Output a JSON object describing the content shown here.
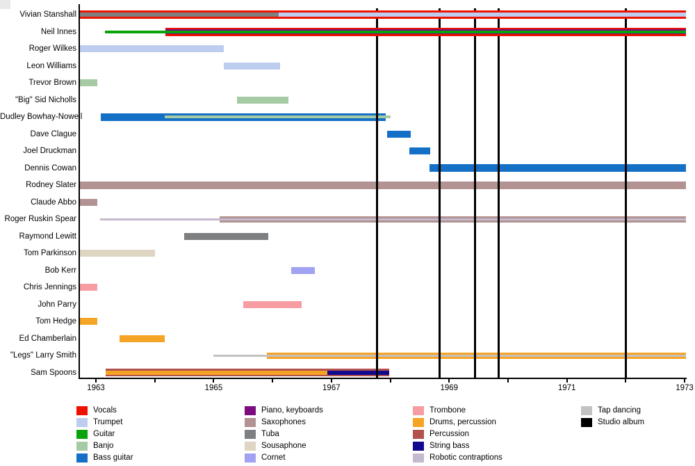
{
  "chart_data": {
    "type": "bar",
    "subtype": "gantt-timeline-band-membership",
    "title": "",
    "xlabel": "",
    "ylabel": "",
    "grid": "off",
    "x_axis": {
      "min": 1962.73,
      "max": 1973.02,
      "tick_years": [
        1963,
        1964,
        1965,
        1966,
        1967,
        1968,
        1969,
        1970,
        1971,
        1972,
        1973
      ],
      "labeled_years": [
        "1963",
        "1965",
        "1967",
        "1969",
        "1971",
        "1973"
      ]
    },
    "palette": {
      "vocals": {
        "label": "Vocals",
        "color": "#ee1100"
      },
      "trumpet": {
        "label": "Trumpet",
        "color": "#bdcdf0"
      },
      "guitar": {
        "label": "Guitar",
        "color": "#0aa30a"
      },
      "banjo": {
        "label": "Banjo",
        "color": "#a6cba4"
      },
      "bass_guitar": {
        "label": "Bass guitar",
        "color": "#1470c6"
      },
      "piano_keyboards": {
        "label": "Piano, keyboards",
        "color": "#7c0c80"
      },
      "saxophones": {
        "label": "Saxophones",
        "color": "#b29292"
      },
      "tuba": {
        "label": "Tuba",
        "color": "#7d7f80"
      },
      "sousaphone": {
        "label": "Sousaphone",
        "color": "#ded5c2"
      },
      "cornet": {
        "label": "Cornet",
        "color": "#a2a2f2"
      },
      "trombone": {
        "label": "Trombone",
        "color": "#f79ca2"
      },
      "drums_percussion": {
        "label": "Drums, percussion",
        "color": "#f6a425"
      },
      "percussion": {
        "label": "Percussion",
        "color": "#b2514d"
      },
      "string_bass": {
        "label": "String bass",
        "color": "#110a8f"
      },
      "robotic_contraptions": {
        "label": "Robotic contraptions",
        "color": "#c5b9cd"
      },
      "tap_dancing": {
        "label": "Tap dancing",
        "color": "#c2c2c2"
      },
      "studio_album": {
        "label": "Studio album",
        "color": "#000000"
      }
    },
    "members": [
      {
        "name": "Vivian Stanshall",
        "above_album_lines": true,
        "segments": [
          {
            "instrument": "vocals",
            "start": 1962.73,
            "end": 1973.02,
            "size": 12
          },
          {
            "instrument": "tuba",
            "start": 1962.73,
            "end": 1966.1,
            "size": 6
          },
          {
            "instrument": "trumpet",
            "start": 1966.1,
            "end": 1973.02,
            "size": 6
          }
        ]
      },
      {
        "name": "Neil Innes",
        "above_album_lines": true,
        "segments": [
          {
            "instrument": "vocals",
            "start": 1964.18,
            "end": 1973.02,
            "size": 12
          },
          {
            "instrument": "piano_keyboards",
            "start": 1964.18,
            "end": 1973.02,
            "size": 7
          },
          {
            "instrument": "guitar",
            "start": 1963.15,
            "end": 1973.02,
            "size": 4
          }
        ]
      },
      {
        "name": "Roger Wilkes",
        "segments": [
          {
            "instrument": "trumpet",
            "start": 1962.73,
            "end": 1965.17,
            "size": 10
          }
        ]
      },
      {
        "name": "Leon Williams",
        "segments": [
          {
            "instrument": "trumpet",
            "start": 1965.17,
            "end": 1966.13,
            "size": 10
          }
        ]
      },
      {
        "name": "Trevor Brown",
        "segments": [
          {
            "instrument": "banjo",
            "start": 1962.73,
            "end": 1963.02,
            "size": 10
          }
        ]
      },
      {
        "name": "\"Big\" Sid Nicholls",
        "segments": [
          {
            "instrument": "banjo",
            "start": 1965.4,
            "end": 1966.27,
            "size": 10
          }
        ]
      },
      {
        "name": "Dudley Bowhay-Nowell",
        "segments": [
          {
            "instrument": "bass_guitar",
            "start": 1963.08,
            "end": 1967.92,
            "size": 11
          },
          {
            "instrument": "banjo",
            "start": 1964.17,
            "end": 1968.0,
            "size": 4
          }
        ]
      },
      {
        "name": "Dave Clague",
        "segments": [
          {
            "instrument": "bass_guitar",
            "start": 1967.95,
            "end": 1968.35,
            "size": 10
          }
        ]
      },
      {
        "name": "Joel Druckman",
        "segments": [
          {
            "instrument": "bass_guitar",
            "start": 1968.32,
            "end": 1968.68,
            "size": 10
          }
        ]
      },
      {
        "name": "Dennis Cowan",
        "segments": [
          {
            "instrument": "bass_guitar",
            "start": 1968.67,
            "end": 1973.02,
            "size": 11
          }
        ]
      },
      {
        "name": "Rodney Slater",
        "segments": [
          {
            "instrument": "saxophones",
            "start": 1962.73,
            "end": 1973.02,
            "size": 11
          }
        ]
      },
      {
        "name": "Claude Abbo",
        "segments": [
          {
            "instrument": "saxophones",
            "start": 1962.73,
            "end": 1963.02,
            "size": 10
          }
        ]
      },
      {
        "name": "Roger Ruskin Spear",
        "segments": [
          {
            "instrument": "saxophones",
            "start": 1965.1,
            "end": 1973.02,
            "size": 9
          },
          {
            "instrument": "robotic_contraptions",
            "start": 1963.07,
            "end": 1973.02,
            "size": 3
          }
        ]
      },
      {
        "name": "Raymond Lewitt",
        "segments": [
          {
            "instrument": "tuba",
            "start": 1964.5,
            "end": 1965.93,
            "size": 10
          }
        ]
      },
      {
        "name": "Tom Parkinson",
        "segments": [
          {
            "instrument": "sousaphone",
            "start": 1962.73,
            "end": 1964.0,
            "size": 10
          }
        ]
      },
      {
        "name": "Bob Kerr",
        "segments": [
          {
            "instrument": "cornet",
            "start": 1966.32,
            "end": 1966.72,
            "size": 10
          }
        ]
      },
      {
        "name": "Chris Jennings",
        "segments": [
          {
            "instrument": "trombone",
            "start": 1962.73,
            "end": 1963.02,
            "size": 10
          }
        ]
      },
      {
        "name": "John Parry",
        "segments": [
          {
            "instrument": "trombone",
            "start": 1965.5,
            "end": 1966.5,
            "size": 10
          }
        ]
      },
      {
        "name": "Tom Hedge",
        "segments": [
          {
            "instrument": "drums_percussion",
            "start": 1962.73,
            "end": 1963.02,
            "size": 10
          }
        ]
      },
      {
        "name": "Ed Chamberlain",
        "segments": [
          {
            "instrument": "drums_percussion",
            "start": 1963.4,
            "end": 1964.17,
            "size": 10
          }
        ]
      },
      {
        "name": "\"Legs\" Larry Smith",
        "segments": [
          {
            "instrument": "drums_percussion",
            "start": 1965.9,
            "end": 1973.02,
            "size": 9
          },
          {
            "instrument": "tap_dancing",
            "start": 1965.0,
            "end": 1973.02,
            "size": 3
          }
        ]
      },
      {
        "name": "Sam Spoons",
        "segments": [
          {
            "instrument": "percussion",
            "start": 1963.17,
            "end": 1967.98,
            "size": 11
          },
          {
            "instrument": "drums_percussion",
            "start": 1963.17,
            "end": 1966.93,
            "size": 6
          },
          {
            "instrument": "string_bass",
            "start": 1966.93,
            "end": 1967.98,
            "size": 6
          }
        ]
      }
    ],
    "albums": {
      "legend_key": "studio_album",
      "release_years": [
        1967.77,
        1968.83,
        1969.43,
        1969.84,
        1972.0
      ]
    },
    "legend_columns": [
      [
        "vocals",
        "trumpet",
        "guitar",
        "banjo",
        "bass_guitar"
      ],
      [
        "piano_keyboards",
        "saxophones",
        "tuba",
        "sousaphone",
        "cornet"
      ],
      [
        "trombone",
        "drums_percussion",
        "percussion",
        "string_bass",
        "robotic_contraptions"
      ],
      [
        "tap_dancing",
        "studio_album"
      ]
    ]
  }
}
